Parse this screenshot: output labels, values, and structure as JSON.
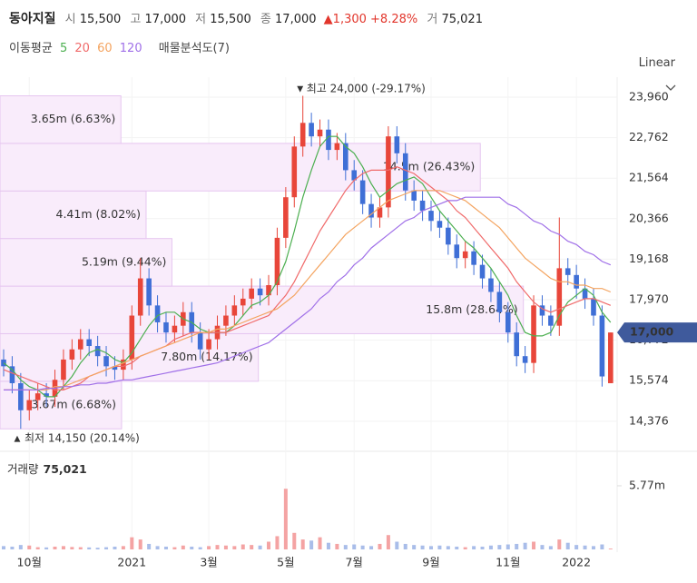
{
  "header": {
    "name": "동아지질",
    "fields": [
      {
        "label": "시",
        "value": "15,500"
      },
      {
        "label": "고",
        "value": "17,000"
      },
      {
        "label": "저",
        "value": "15,500"
      },
      {
        "label": "종",
        "value": "17,000"
      }
    ],
    "change": "1,300",
    "change_pct": "+8.28%",
    "volume_label": "거",
    "volume": "75,021",
    "ma_title": "이동평균",
    "profile_title": "매물분석도(7)",
    "scale": "Linear"
  },
  "chart_data": {
    "type": "candlestick",
    "categories": [
      null,
      null,
      null,
      "10월",
      null,
      null,
      null,
      null,
      null,
      null,
      null,
      null,
      null,
      null,
      null,
      "2021",
      null,
      null,
      null,
      null,
      null,
      null,
      null,
      null,
      "3월",
      null,
      null,
      null,
      null,
      null,
      null,
      null,
      null,
      "5월",
      null,
      null,
      null,
      null,
      null,
      null,
      null,
      "7월",
      null,
      null,
      null,
      null,
      null,
      null,
      null,
      null,
      "9월",
      null,
      null,
      null,
      null,
      null,
      null,
      null,
      null,
      "11월",
      null,
      null,
      null,
      null,
      null,
      null,
      null,
      "2022",
      null,
      null,
      null,
      null
    ],
    "open": [
      16200,
      16000,
      15500,
      14700,
      15000,
      15200,
      15100,
      15600,
      16200,
      16500,
      16800,
      16600,
      16300,
      16000,
      15900,
      16200,
      17500,
      18600,
      17800,
      17300,
      17000,
      17200,
      17600,
      17000,
      16500,
      16800,
      17200,
      17500,
      17800,
      18000,
      18300,
      18100,
      18400,
      19800,
      21000,
      22500,
      23200,
      22800,
      23000,
      22400,
      22600,
      21800,
      21500,
      20800,
      20400,
      20700,
      22800,
      22300,
      21200,
      20900,
      20600,
      20300,
      20100,
      19600,
      19200,
      19400,
      19000,
      18600,
      18200,
      17600,
      17000,
      16300,
      16100,
      17800,
      17500,
      17200,
      18900,
      18700,
      18300,
      18000,
      17500,
      15500
    ],
    "high": [
      16500,
      16300,
      15800,
      15300,
      15500,
      15500,
      15900,
      16500,
      16800,
      17100,
      17100,
      16900,
      16600,
      16300,
      16500,
      17800,
      19200,
      18900,
      18100,
      17600,
      17500,
      17900,
      17900,
      17300,
      17100,
      17500,
      17800,
      18100,
      18300,
      18600,
      18600,
      18700,
      20100,
      21300,
      22800,
      24000,
      23500,
      23300,
      23300,
      22900,
      22900,
      22100,
      21800,
      21100,
      21000,
      23100,
      23100,
      22600,
      21500,
      21200,
      20900,
      20600,
      20400,
      19900,
      19700,
      19700,
      19300,
      18900,
      18500,
      17900,
      17300,
      16600,
      18100,
      18100,
      17800,
      20400,
      19200,
      19000,
      18600,
      18300,
      17800,
      17000
    ],
    "low": [
      15700,
      15200,
      14150,
      14400,
      14700,
      14800,
      14800,
      15300,
      15900,
      16200,
      16300,
      16000,
      15700,
      15600,
      15600,
      15900,
      17200,
      17500,
      17000,
      16700,
      16700,
      16900,
      16700,
      16200,
      16200,
      16500,
      16900,
      17200,
      17500,
      17700,
      17800,
      17800,
      18100,
      19500,
      20700,
      22200,
      22500,
      22500,
      22100,
      22100,
      21500,
      21200,
      20500,
      20100,
      20100,
      20400,
      22000,
      20900,
      20600,
      20300,
      20000,
      19800,
      19300,
      18900,
      18900,
      18700,
      18300,
      17900,
      17300,
      16700,
      16000,
      15800,
      15800,
      17200,
      16900,
      16900,
      18400,
      18000,
      17700,
      17200,
      15400,
      15500
    ],
    "close": [
      16000,
      15500,
      14700,
      15000,
      15200,
      15100,
      15600,
      16200,
      16500,
      16800,
      16600,
      16300,
      16000,
      15900,
      16200,
      17500,
      18600,
      17800,
      17300,
      17000,
      17200,
      17600,
      17000,
      16500,
      16800,
      17200,
      17500,
      17800,
      18000,
      18300,
      18100,
      18400,
      19800,
      21000,
      22500,
      23200,
      22800,
      23000,
      22400,
      22600,
      21800,
      21500,
      20800,
      20400,
      20700,
      22800,
      22300,
      21200,
      20900,
      20600,
      20300,
      20100,
      19600,
      19200,
      19400,
      19000,
      18600,
      18200,
      17600,
      17000,
      16300,
      16100,
      17800,
      17500,
      17200,
      18900,
      18700,
      18300,
      18000,
      17500,
      15700,
      17000
    ],
    "up_color": "#e8463a",
    "down_color": "#3f6fd6",
    "series": [
      {
        "name": "5",
        "color": "#4caf50",
        "values": [
          16100,
          15900,
          15600,
          15400,
          15300,
          15100,
          15100,
          15400,
          15700,
          16100,
          16400,
          16500,
          16400,
          16200,
          16100,
          16400,
          16800,
          17200,
          17500,
          17600,
          17600,
          17400,
          17300,
          17100,
          17000,
          17000,
          17000,
          17200,
          17500,
          17800,
          17900,
          18100,
          18500,
          19100,
          20000,
          21000,
          21800,
          22500,
          22800,
          22800,
          22500,
          22300,
          21900,
          21400,
          21000,
          21200,
          21400,
          21500,
          21600,
          21400,
          21000,
          20600,
          20300,
          20000,
          19700,
          19500,
          19200,
          18900,
          18500,
          18100,
          17500,
          17000,
          16900,
          16900,
          17000,
          17500,
          17900,
          18100,
          18300,
          18100,
          17600,
          17300
        ]
      },
      {
        "name": "20",
        "color": "#f06a6a",
        "values": [
          15900,
          15800,
          15700,
          15600,
          15500,
          15400,
          15300,
          15300,
          15400,
          15500,
          15700,
          15800,
          15900,
          16000,
          16000,
          16100,
          16300,
          16400,
          16500,
          16600,
          16800,
          16900,
          17000,
          17000,
          17000,
          17000,
          17000,
          17100,
          17200,
          17300,
          17400,
          17500,
          17800,
          18100,
          18500,
          19000,
          19500,
          20000,
          20400,
          20800,
          21200,
          21500,
          21700,
          21800,
          21800,
          21800,
          21900,
          21800,
          21700,
          21500,
          21300,
          21100,
          20900,
          20600,
          20400,
          20100,
          19800,
          19500,
          19200,
          18900,
          18500,
          18200,
          17900,
          17700,
          17600,
          17700,
          17800,
          17900,
          18000,
          18000,
          17900,
          17800
        ]
      },
      {
        "name": "60",
        "color": "#f4a460",
        "values": [
          15300,
          15300,
          15300,
          15300,
          15300,
          15300,
          15400,
          15400,
          15500,
          15600,
          15700,
          15800,
          15900,
          16000,
          16100,
          16200,
          16300,
          16400,
          16500,
          16600,
          16700,
          16800,
          16900,
          17000,
          17000,
          17100,
          17100,
          17200,
          17300,
          17400,
          17500,
          17600,
          17700,
          17900,
          18100,
          18400,
          18700,
          19000,
          19300,
          19600,
          19900,
          20100,
          20300,
          20500,
          20700,
          20900,
          21000,
          21100,
          21200,
          21200,
          21200,
          21200,
          21100,
          21000,
          20900,
          20700,
          20500,
          20300,
          20100,
          19800,
          19500,
          19200,
          19000,
          18800,
          18600,
          18500,
          18500,
          18400,
          18400,
          18300,
          18300,
          18200
        ]
      },
      {
        "name": "120",
        "color": "#a070e8",
        "values": [
          15300,
          15300,
          15300,
          15300,
          15300,
          15350,
          15350,
          15400,
          15400,
          15450,
          15450,
          15500,
          15500,
          15550,
          15600,
          15600,
          15650,
          15700,
          15750,
          15800,
          15850,
          15900,
          15950,
          16000,
          16050,
          16100,
          16200,
          16300,
          16400,
          16500,
          16600,
          16700,
          16900,
          17100,
          17300,
          17500,
          17700,
          18000,
          18200,
          18500,
          18700,
          19000,
          19200,
          19500,
          19700,
          19900,
          20100,
          20300,
          20400,
          20600,
          20700,
          20800,
          20900,
          20900,
          21000,
          21000,
          21000,
          21000,
          21000,
          20800,
          20700,
          20500,
          20300,
          20200,
          20000,
          19900,
          19700,
          19600,
          19400,
          19300,
          19100,
          19000
        ]
      }
    ],
    "ylim": [
      13673,
      24551
    ],
    "yticks": [
      {
        "value": 23960,
        "label": "23,960"
      },
      {
        "value": 22762,
        "label": "22,762"
      },
      {
        "value": 21564,
        "label": "21,564"
      },
      {
        "value": 20366,
        "label": "20,366"
      },
      {
        "value": 19168,
        "label": "19,168"
      },
      {
        "value": 17970,
        "label": "17,970"
      },
      {
        "value": 16772,
        "label": "16,772"
      },
      {
        "value": 15574,
        "label": "15,574"
      },
      {
        "value": 14376,
        "label": "14,376"
      }
    ],
    "grid": true,
    "profile": {
      "bins": [
        14150,
        15557,
        16964,
        18371,
        19779,
        21186,
        22593,
        24000
      ],
      "values": [
        3670000,
        7800000,
        15800000,
        5190000,
        4410000,
        14500000,
        3650000
      ],
      "value_labels": [
        "3.67m (6.68%)",
        "7.80m (14.17%)",
        "15.8m (28.64%)",
        "5.19m (9.44%)",
        "4.41m (8.02%)",
        "14.5m (26.43%)",
        "3.65m (6.63%)"
      ],
      "color": "#f9ecfb",
      "edge": "#e6c6f0"
    },
    "max_label": "최고 24,000 (-29.17%)",
    "min_label": "최저 14,150 (20.14%)",
    "last_price": {
      "value": 17000,
      "label": "17,000"
    },
    "volume": {
      "title": "거래량",
      "value_label": "75,021",
      "values": [
        300000,
        250000,
        400000,
        350000,
        200000,
        180000,
        250000,
        300000,
        220000,
        200000,
        180000,
        150000,
        200000,
        250000,
        300000,
        1100000,
        900000,
        500000,
        300000,
        250000,
        200000,
        350000,
        250000,
        200000,
        300000,
        400000,
        350000,
        300000,
        450000,
        400000,
        350000,
        700000,
        1200000,
        5500000,
        1500000,
        900000,
        800000,
        1100000,
        600000,
        500000,
        400000,
        450000,
        350000,
        300000,
        500000,
        1300000,
        700000,
        500000,
        400000,
        350000,
        300000,
        350000,
        300000,
        250000,
        200000,
        300000,
        250000,
        350000,
        400000,
        450000,
        500000,
        600000,
        700000,
        400000,
        300000,
        900000,
        600000,
        400000,
        350000,
        300000,
        450000,
        75021
      ],
      "ylim": [
        0,
        8650000
      ],
      "yticks": [
        {
          "value": 5770000,
          "label": "5.77m"
        }
      ],
      "up_color": "#f4a3a3",
      "down_color": "#a9bde9"
    }
  }
}
